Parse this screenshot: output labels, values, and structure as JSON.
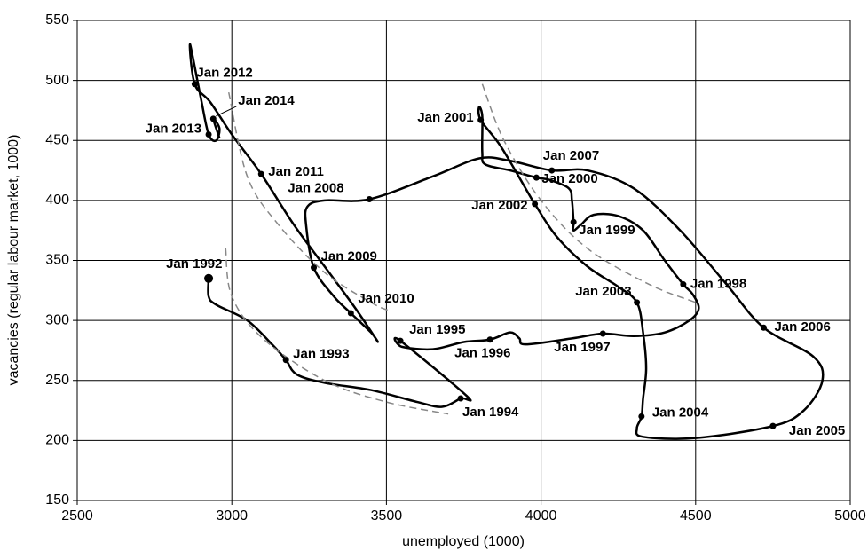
{
  "chart_data": {
    "type": "line",
    "xlabel": "unemployed (1000)",
    "ylabel": "vacancies (regular labour market, 1000)",
    "xlim": [
      2500,
      5000
    ],
    "xticks": [
      2500,
      3000,
      3500,
      4000,
      4500,
      5000
    ],
    "ylim": [
      150,
      550
    ],
    "yticks": [
      150,
      200,
      250,
      300,
      350,
      400,
      450,
      500,
      550
    ],
    "grid": true,
    "series": [
      {
        "color": "#000000",
        "dash": false,
        "x": [
          2925,
          2925,
          2950,
          3050,
          3130,
          3175,
          3210,
          3300,
          3450,
          3600,
          3680,
          3740,
          3760,
          3545,
          3550,
          3650,
          3750,
          3835,
          3900,
          3930,
          3950,
          4100,
          4200,
          4300,
          4400,
          4480,
          4510,
          4490,
          4460,
          4400,
          4330,
          4250,
          4170,
          4130,
          4105,
          4105,
          4100,
          4090,
          4030,
          3985,
          3900,
          3820,
          3810,
          3810,
          3800,
          3805,
          3870,
          3950,
          3980,
          4050,
          4150,
          4250,
          4310,
          4330,
          4340,
          4330,
          4325,
          4310,
          4330,
          4500,
          4750,
          4850,
          4910,
          4880,
          4720,
          4600,
          4450,
          4300,
          4150,
          4035,
          3900,
          3800,
          3650,
          3445,
          3300,
          3245,
          3240,
          3265,
          3330,
          3385,
          3450,
          3470,
          3400,
          3300,
          3200,
          3095,
          3000,
          2930,
          2880,
          2865,
          2900,
          2925,
          2950,
          2960,
          2940,
          2960
        ],
        "values": [
          335,
          320,
          313,
          300,
          280,
          267,
          255,
          248,
          242,
          232,
          228,
          235,
          237,
          283,
          278,
          276,
          282,
          284,
          290,
          285,
          280,
          285,
          289,
          287,
          290,
          300,
          310,
          322,
          330,
          350,
          375,
          387,
          388,
          380,
          375,
          382,
          400,
          410,
          417,
          419,
          425,
          430,
          440,
          470,
          478,
          467,
          445,
          410,
          397,
          370,
          345,
          328,
          315,
          290,
          260,
          235,
          220,
          210,
          203,
          202,
          212,
          225,
          250,
          270,
          294,
          330,
          375,
          410,
          425,
          425,
          433,
          435,
          420,
          401,
          400,
          395,
          380,
          344,
          320,
          306,
          290,
          283,
          310,
          345,
          380,
          422,
          455,
          482,
          497,
          530,
          485,
          455,
          450,
          460,
          468,
          452
        ]
      },
      {
        "color": "#888888",
        "dash": true,
        "x": [
          2980,
          3000,
          3100,
          3300,
          3500,
          3700
        ],
        "values": [
          360,
          320,
          285,
          250,
          232,
          222
        ]
      },
      {
        "color": "#888888",
        "dash": true,
        "x": [
          2990,
          3050,
          3150,
          3300,
          3450,
          3510
        ],
        "values": [
          490,
          420,
          380,
          340,
          315,
          308
        ]
      },
      {
        "color": "#888888",
        "dash": true,
        "x": [
          3810,
          3880,
          4000,
          4150,
          4350,
          4500
        ],
        "values": [
          497,
          450,
          400,
          360,
          330,
          315
        ]
      }
    ],
    "points": {
      "color": "#000000",
      "x": [
        2925,
        3175,
        3740,
        3545,
        3835,
        4200,
        4460,
        4105,
        3985,
        3805,
        3980,
        4310,
        4325,
        4750,
        4720,
        4035,
        3445,
        3265,
        3385,
        3095,
        2880,
        2925,
        2940
      ],
      "values": [
        335,
        267,
        235,
        283,
        284,
        289,
        330,
        382,
        419,
        467,
        397,
        315,
        220,
        212,
        294,
        425,
        401,
        344,
        306,
        422,
        497,
        455,
        468
      ],
      "labels": [
        "Jan 1992",
        "Jan 1993",
        "Jan 1994",
        "Jan 1995",
        "Jan 1996",
        "Jan 1997",
        "Jan 1998",
        "Jan 1999",
        "Jan 2000",
        "Jan 2001",
        "Jan 2002",
        "Jan 2003",
        "Jan 2004",
        "Jan 2005",
        "Jan 2006",
        "Jan 2007",
        "Jan 2008",
        "Jan 2009",
        "Jan 2010",
        "Jan 2011",
        "Jan 2012",
        "Jan 2013",
        "Jan 2014"
      ]
    }
  }
}
